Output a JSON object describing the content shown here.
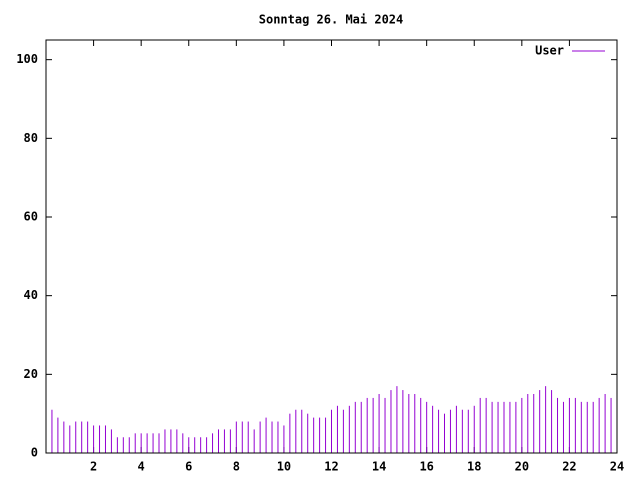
{
  "chart_data": {
    "type": "impulse",
    "title": "Sonntag 26. Mai 2024",
    "x": [
      0,
      0.25,
      0.5,
      0.75,
      1,
      1.25,
      1.5,
      1.75,
      2,
      2.25,
      2.5,
      2.75,
      3,
      3.25,
      3.5,
      3.75,
      4,
      4.25,
      4.5,
      4.75,
      5,
      5.25,
      5.5,
      5.75,
      6,
      6.25,
      6.5,
      6.75,
      7,
      7.25,
      7.5,
      7.75,
      8,
      8.25,
      8.5,
      8.75,
      9,
      9.25,
      9.5,
      9.75,
      10,
      10.25,
      10.5,
      10.75,
      11,
      11.25,
      11.5,
      11.75,
      12,
      12.25,
      12.5,
      12.75,
      13,
      13.25,
      13.5,
      13.75,
      14,
      14.25,
      14.5,
      14.75,
      15,
      15.25,
      15.5,
      15.75,
      16,
      16.25,
      16.5,
      16.75,
      17,
      17.25,
      17.5,
      17.75,
      18,
      18.25,
      18.5,
      18.75,
      19,
      19.25,
      19.5,
      19.75,
      20,
      20.25,
      20.5,
      20.75,
      21,
      21.25,
      21.5,
      21.75,
      22,
      22.25,
      22.5,
      22.75,
      23,
      23.25,
      23.5,
      23.75
    ],
    "series": [
      {
        "name": "User",
        "color": "#9400d3",
        "values": [
          13,
          11,
          9,
          8,
          7,
          8,
          8,
          8,
          7,
          7,
          7,
          6,
          4,
          4,
          4,
          5,
          5,
          5,
          5,
          5,
          6,
          6,
          6,
          5,
          4,
          4,
          4,
          4,
          5,
          6,
          6,
          6,
          8,
          8,
          8,
          6,
          8,
          9,
          8,
          8,
          7,
          10,
          11,
          11,
          10,
          9,
          9,
          9,
          11,
          12,
          11,
          12,
          13,
          13,
          14,
          14,
          15,
          14,
          16,
          17,
          16,
          15,
          15,
          14,
          13,
          12,
          11,
          10,
          11,
          12,
          11,
          11,
          12,
          14,
          14,
          13,
          13,
          13,
          13,
          13,
          14,
          15,
          15,
          16,
          17,
          16,
          14,
          13,
          14,
          14,
          13,
          13,
          13,
          14,
          15,
          14
        ]
      }
    ],
    "xlim": [
      0,
      24
    ],
    "ylim": [
      0,
      105
    ],
    "xticks": [
      2,
      4,
      6,
      8,
      10,
      12,
      14,
      16,
      18,
      20,
      22,
      24
    ],
    "yticks": [
      0,
      20,
      40,
      60,
      80,
      100
    ],
    "legend": "top-right"
  }
}
